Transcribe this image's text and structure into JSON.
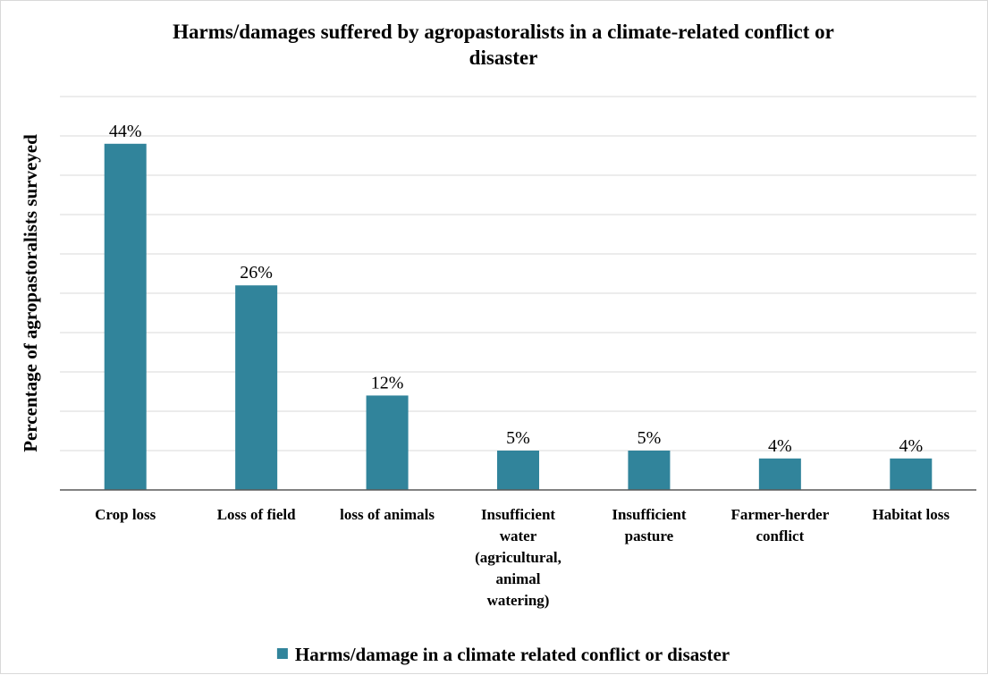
{
  "chart_data": {
    "type": "bar",
    "title_lines": [
      "Harms/damages suffered by agropastoralists in a climate-related conflict or",
      "disaster"
    ],
    "ylabel": "Percentage of agropastoralists surveyed",
    "xlabel": "",
    "categories": [
      [
        "Crop loss"
      ],
      [
        "Loss of field"
      ],
      [
        "loss of animals"
      ],
      [
        "Insufficient",
        "water",
        "(agricultural,",
        "animal",
        "watering)"
      ],
      [
        "Insufficient",
        "pasture"
      ],
      [
        "Farmer-herder",
        "conflict"
      ],
      [
        "Habitat loss"
      ]
    ],
    "series": [
      {
        "name": "Harms/damage in a climate related conflict or disaster",
        "values": [
          44,
          26,
          12,
          5,
          5,
          4,
          4
        ],
        "labels": [
          "44%",
          "26%",
          "12%",
          "5%",
          "5%",
          "4%",
          "4%"
        ],
        "color": "#31849b"
      }
    ],
    "ylim": [
      0,
      50
    ],
    "gridline_step": 5,
    "y_tick_labels_shown": false,
    "grid": true,
    "legend": "bottom"
  }
}
